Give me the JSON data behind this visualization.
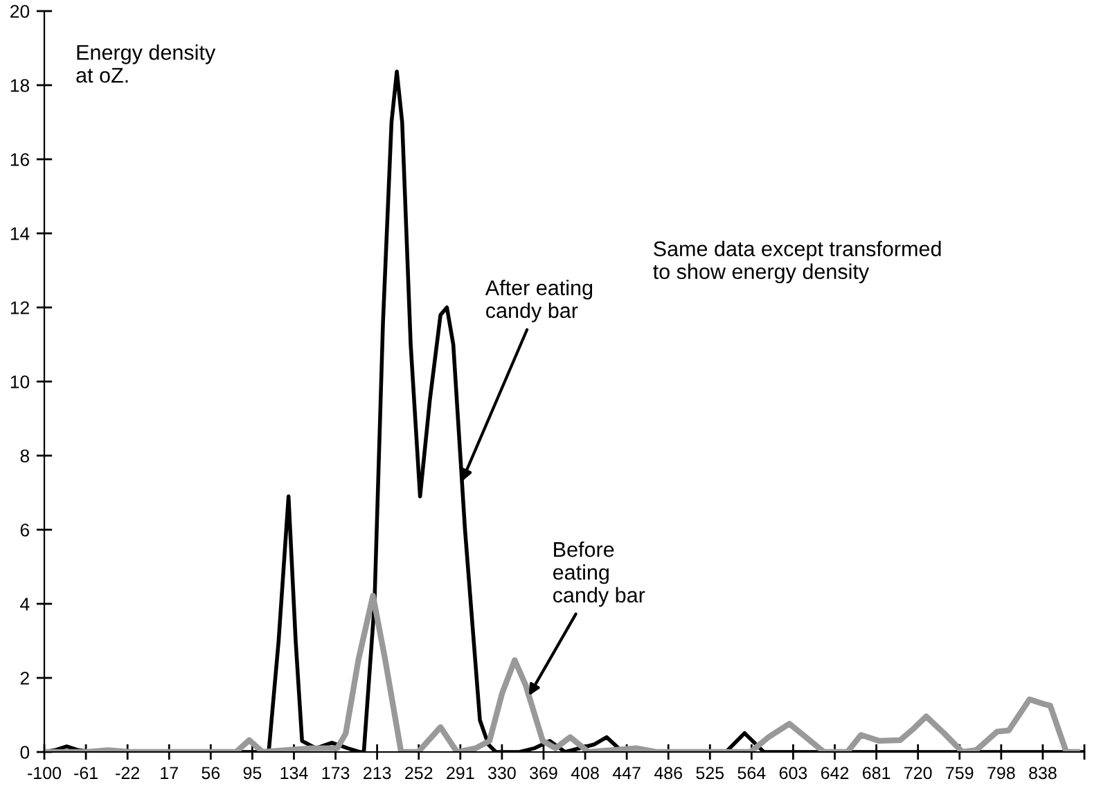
{
  "chart_data": {
    "type": "line",
    "series": [
      {
        "color": "#000000",
        "x": [
          -100,
          -90,
          -79,
          -68,
          -55,
          0,
          100,
          110.7,
          120,
          129.3,
          136,
          142,
          155,
          170,
          185,
          196,
          200,
          210,
          218,
          226,
          231,
          236,
          244,
          252.8,
          262,
          272,
          278,
          284,
          295,
          309,
          317,
          324,
          346,
          360,
          374.6,
          389,
          416,
          428,
          443,
          540,
          557.5,
          575.6,
          876
        ],
        "values": [
          0,
          0.05,
          0.15,
          0.05,
          0,
          0,
          0,
          0,
          3,
          6.9,
          3,
          0.3,
          0.1,
          0.25,
          0.1,
          0,
          0,
          4,
          11.6,
          17,
          18.37,
          17,
          11,
          6.9,
          9.5,
          11.8,
          12,
          11,
          6,
          0.86,
          0.2,
          0,
          0,
          0.1,
          0.3,
          0,
          0.2,
          0.4,
          0,
          0,
          0.51,
          0,
          0
        ]
      },
      {
        "color": "#999999",
        "x": [
          -100,
          -60,
          -40,
          -20,
          50,
          80,
          92.4,
          105,
          150,
          175,
          183,
          195,
          208.6,
          220,
          235,
          251,
          272,
          287.5,
          305,
          318,
          330,
          341.7,
          352,
          368,
          380,
          393.7,
          411,
          456,
          475,
          563,
          580,
          599.6,
          615,
          632,
          654,
          666.8,
          684,
          703.6,
          715,
          728,
          745,
          762,
          775,
          794.6,
          805.5,
          825,
          838,
          844.5,
          859.6,
          870
        ],
        "values": [
          0,
          0,
          0.05,
          0,
          0,
          0,
          0.32,
          0,
          0.1,
          0.1,
          0.5,
          2.5,
          4.22,
          2.5,
          0,
          0,
          0.67,
          0,
          0.1,
          0.3,
          1.6,
          2.48,
          1.8,
          0.3,
          0.1,
          0.4,
          0,
          0.1,
          0,
          0,
          0.4,
          0.76,
          0.4,
          0,
          0,
          0.46,
          0.3,
          0.32,
          0.6,
          0.96,
          0.5,
          0,
          0.05,
          0.55,
          0.58,
          1.42,
          1.3,
          1.25,
          0,
          0
        ]
      }
    ],
    "xlim": [
      -100,
      876.5625
    ],
    "xticks": [
      {
        "value": -100,
        "label": "-100"
      },
      {
        "value": -60.9375,
        "label": "-61"
      },
      {
        "value": -21.875,
        "label": "-22"
      },
      {
        "value": 17.1875,
        "label": "17"
      },
      {
        "value": 56.25,
        "label": "56"
      },
      {
        "value": 95.3125,
        "label": "95"
      },
      {
        "value": 134.375,
        "label": "134"
      },
      {
        "value": 173.4375,
        "label": "173"
      },
      {
        "value": 212.5,
        "label": "213"
      },
      {
        "value": 251.5625,
        "label": "252"
      },
      {
        "value": 290.625,
        "label": "291"
      },
      {
        "value": 329.6875,
        "label": "330"
      },
      {
        "value": 368.75,
        "label": "369"
      },
      {
        "value": 407.8125,
        "label": "408"
      },
      {
        "value": 446.875,
        "label": "447"
      },
      {
        "value": 485.9375,
        "label": "486"
      },
      {
        "value": 525,
        "label": "525"
      },
      {
        "value": 564.0625,
        "label": "564"
      },
      {
        "value": 603.125,
        "label": "603"
      },
      {
        "value": 642.1875,
        "label": "642"
      },
      {
        "value": 681.25,
        "label": "681"
      },
      {
        "value": 720.3125,
        "label": "720"
      },
      {
        "value": 759.375,
        "label": "759"
      },
      {
        "value": 798.4375,
        "label": "798"
      },
      {
        "value": 837.5,
        "label": "838"
      },
      {
        "value": 876.5625,
        "label": null
      }
    ],
    "ylim": [
      0,
      20
    ],
    "yticks": [
      0,
      2,
      4,
      6,
      8,
      10,
      12,
      14,
      16,
      18,
      20
    ],
    "grid": false,
    "legend": false,
    "marker": "none",
    "line_style": "solid",
    "annotations": [
      "Energy density\nat oZ.",
      "Same data except transformed\nto show energy density",
      {
        "text": "After eating\ncandy bar",
        "x": 292,
        "y": 7.3
      },
      {
        "text": "Before\neating\ncandy bar",
        "x": 355,
        "y": 1.52
      }
    ]
  }
}
